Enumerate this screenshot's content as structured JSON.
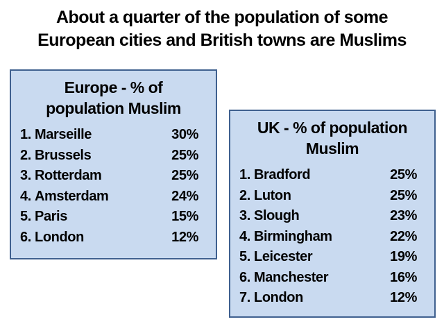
{
  "title": {
    "line1": "About a quarter of the population of some",
    "line2": "European cities and British towns are Muslims"
  },
  "colors": {
    "box_fill": "#c9daf0",
    "box_border": "#3f608f",
    "text": "#000000",
    "background": "#ffffff"
  },
  "europe_box": {
    "heading_lines": [
      "Europe - % of",
      "population Muslim"
    ],
    "items": [
      {
        "rank": "1.",
        "name": "Marseille",
        "value": "30%"
      },
      {
        "rank": "2.",
        "name": "Brussels",
        "value": "25%"
      },
      {
        "rank": "3.",
        "name": "Rotterdam",
        "value": "25%"
      },
      {
        "rank": "4.",
        "name": "Amsterdam",
        "value": "24%"
      },
      {
        "rank": "5.",
        "name": "Paris",
        "value": "15%"
      },
      {
        "rank": "6.",
        "name": "London",
        "value": "12%"
      }
    ]
  },
  "uk_box": {
    "heading_lines": [
      "UK - % of population",
      "Muslim"
    ],
    "items": [
      {
        "rank": "1.",
        "name": "Bradford",
        "value": "25%"
      },
      {
        "rank": "2.",
        "name": "Luton",
        "value": "25%"
      },
      {
        "rank": "3.",
        "name": "Slough",
        "value": "23%"
      },
      {
        "rank": "4.",
        "name": "Birmingham",
        "value": "22%"
      },
      {
        "rank": "5.",
        "name": "Leicester",
        "value": "19%"
      },
      {
        "rank": "6.",
        "name": "Manchester",
        "value": "16%"
      },
      {
        "rank": "7.",
        "name": "London",
        "value": "12%"
      }
    ]
  }
}
